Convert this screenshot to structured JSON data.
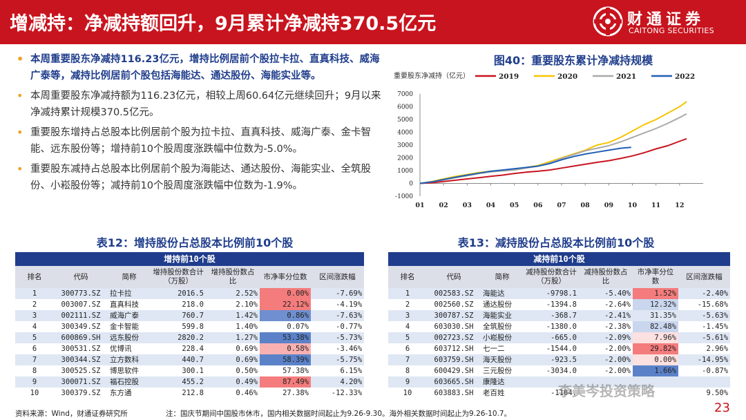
{
  "header": {
    "title": "增减持：净减持额回升，9月累计净减持370.5亿元",
    "logo_cn": "财通证券",
    "logo_en": "CAITONG SECURITIES"
  },
  "bullets": [
    "本周重要股东净减持116.23亿元，增持比例居前个股拉卡拉、直真科技、威海广泰等，减持比例居前个股包括海能达、通达股份、海能实业等。",
    "本周重要股东净减持额为116.23亿元，相较上周60.64亿元继续回升；9月以来净减持累计规模370.5亿元。",
    "重要股东增持占总股本比例居前个股为拉卡拉、直真科技、威海广泰、金卡智能、远东股份等；增持前10个股周度涨跌幅中位数为-5.0%。",
    "重要股东减持占总股本比例居前个股为海能达、通达股份、海能实业、全筑股份、小崧股份等；减持前10个股周度涨跌幅中位数为-1.9%。"
  ],
  "chart": {
    "title": "图40：重要股东累计净减持规模"
  },
  "chart_data": {
    "type": "line",
    "title": "图40：重要股东累计净减持规模",
    "ylabel": "重要股东净减持（亿元）",
    "xlabel": "",
    "x_ticks": [
      "01",
      "02",
      "03",
      "04",
      "05",
      "06",
      "07",
      "08",
      "09",
      "10",
      "11",
      "12"
    ],
    "y_ticks": [
      -1000,
      0,
      1000,
      2000,
      3000,
      4000,
      5000,
      6000,
      7000
    ],
    "ylim": [
      -1000,
      7000
    ],
    "xlim": [
      1,
      13
    ],
    "legend_position": "top",
    "series": [
      {
        "name": "2019",
        "color": "#c8141e",
        "x": [
          1,
          1.5,
          2,
          2.5,
          3,
          3.5,
          4,
          4.5,
          5,
          5.5,
          6,
          6.5,
          7,
          7.5,
          8,
          8.5,
          9,
          9.5,
          10,
          10.5,
          11,
          11.5,
          12,
          12.3
        ],
        "values": [
          0,
          50,
          150,
          250,
          350,
          450,
          550,
          650,
          780,
          880,
          950,
          1050,
          1200,
          1350,
          1500,
          1650,
          1780,
          1950,
          2150,
          2400,
          2700,
          2950,
          3300,
          3500
        ]
      },
      {
        "name": "2020",
        "color": "#f5c400",
        "x": [
          1,
          1.5,
          2,
          2.5,
          3,
          3.5,
          4,
          4.5,
          5,
          5.5,
          6,
          6.5,
          7,
          7.5,
          8,
          8.5,
          9,
          9.5,
          10,
          10.5,
          11,
          11.5,
          12,
          12.3
        ],
        "values": [
          0,
          150,
          350,
          550,
          700,
          850,
          950,
          1000,
          1100,
          1250,
          1400,
          1700,
          2000,
          2300,
          2600,
          3000,
          3200,
          3600,
          4100,
          4600,
          5000,
          5500,
          6000,
          6400
        ]
      },
      {
        "name": "2021",
        "color": "#a9a9a9",
        "x": [
          1,
          1.5,
          2,
          2.5,
          3,
          3.5,
          4,
          4.5,
          5,
          5.5,
          6,
          6.5,
          7,
          7.5,
          8,
          8.5,
          9,
          9.5,
          10,
          10.5,
          11,
          11.5,
          12,
          12.3
        ],
        "values": [
          0,
          120,
          280,
          450,
          600,
          780,
          900,
          980,
          1050,
          1200,
          1350,
          1600,
          1950,
          2250,
          2550,
          2750,
          2950,
          3250,
          3600,
          3950,
          4300,
          4700,
          5150,
          5450
        ]
      },
      {
        "name": "2022",
        "color": "#1f5fb4",
        "x": [
          1,
          1.5,
          2,
          2.5,
          3,
          3.5,
          4,
          4.5,
          5,
          5.5,
          6,
          6.5,
          7,
          7.5,
          8,
          8.5,
          9,
          9.5,
          9.95
        ],
        "values": [
          0,
          120,
          300,
          480,
          650,
          800,
          950,
          1050,
          1150,
          1250,
          1350,
          1550,
          1850,
          2100,
          2300,
          2450,
          2600,
          2750,
          2820
        ]
      }
    ]
  },
  "table_left": {
    "title": "表12：增持股份占总股本比例前10个股",
    "group_header": "增持前10个股",
    "columns": [
      "排名",
      "代码",
      "简称",
      "增持股份数合计（万股）",
      "增持股份数占比",
      "市净率分位数",
      "区间涨跌幅"
    ],
    "rows": [
      {
        "rank": "1",
        "code": "300773.SZ",
        "name": "拉卡拉",
        "shares": "2016.5",
        "ratio": "2.52%",
        "pb": "0.00%",
        "chg": "-7.69%",
        "pb_color": "#f47c7c"
      },
      {
        "rank": "2",
        "code": "003007.SZ",
        "name": "直真科技",
        "shares": "218.0",
        "ratio": "2.10%",
        "pb": "22.12%",
        "chg": "-4.19%",
        "pb_color": "#f47c7c"
      },
      {
        "rank": "3",
        "code": "002111.SZ",
        "name": "威海广泰",
        "shares": "760.7",
        "ratio": "1.42%",
        "pb": "0.86%",
        "chg": "-7.63%",
        "pb_color": "#6f8fd0"
      },
      {
        "rank": "4",
        "code": "300349.SZ",
        "name": "金卡智能",
        "shares": "599.8",
        "ratio": "1.40%",
        "pb": "0.07%",
        "chg": "-0.77%",
        "pb_color": ""
      },
      {
        "rank": "5",
        "code": "600869.SH",
        "name": "远东股份",
        "shares": "2820.2",
        "ratio": "1.27%",
        "pb": "53.38%",
        "chg": "-5.73%",
        "pb_color": "#5b82c8"
      },
      {
        "rank": "6",
        "code": "300531.SZ",
        "name": "优博讯",
        "shares": "228.4",
        "ratio": "0.69%",
        "pb": "0.58%",
        "chg": "-3.46%",
        "pb_color": "#f9b0b0"
      },
      {
        "rank": "7",
        "code": "300344.SZ",
        "name": "立方数科",
        "shares": "440.7",
        "ratio": "0.69%",
        "pb": "58.39%",
        "chg": "-5.75%",
        "pb_color": "#5b82c8"
      },
      {
        "rank": "8",
        "code": "300525.SZ",
        "name": "博思软件",
        "shares": "300.1",
        "ratio": "0.50%",
        "pb": "57.38%",
        "chg": "6.15%",
        "pb_color": ""
      },
      {
        "rank": "9",
        "code": "300071.SZ",
        "name": "福石控股",
        "shares": "455.2",
        "ratio": "0.49%",
        "pb": "87.49%",
        "chg": "4.20%",
        "pb_color": "#f47c7c"
      },
      {
        "rank": "10",
        "code": "300379.SZ",
        "name": "东方通",
        "shares": "212.8",
        "ratio": "0.46%",
        "pb": "27.38%",
        "chg": "-12.33%",
        "pb_color": ""
      }
    ]
  },
  "table_right": {
    "title": "表13：减持股份占总股本比例前10个股",
    "group_header": "减持前10个股",
    "columns": [
      "排名",
      "代码",
      "简称",
      "减持股份数合计（万股）",
      "减持股份数占比",
      "市净率分位数",
      "区间涨跌幅"
    ],
    "rows": [
      {
        "rank": "1",
        "code": "002583.SZ",
        "name": "海能达",
        "shares": "-9798.1",
        "ratio": "-5.40%",
        "pb": "1.52%",
        "chg": "-2.40%",
        "pb_color": "#f47c7c"
      },
      {
        "rank": "2",
        "code": "002560.SZ",
        "name": "通达股份",
        "shares": "-1394.8",
        "ratio": "-2.64%",
        "pb": "12.32%",
        "chg": "-15.68%",
        "pb_color": "#c9d6ee"
      },
      {
        "rank": "3",
        "code": "300787.SZ",
        "name": "海能实业",
        "shares": "-368.7",
        "ratio": "-2.41%",
        "pb": "31.35%",
        "chg": "-5.63%",
        "pb_color": ""
      },
      {
        "rank": "4",
        "code": "603030.SH",
        "name": "全筑股份",
        "shares": "-1380.0",
        "ratio": "-2.38%",
        "pb": "82.48%",
        "chg": "-1.45%",
        "pb_color": "#c9d6ee"
      },
      {
        "rank": "5",
        "code": "002723.SZ",
        "name": "小崧股份",
        "shares": "-665.0",
        "ratio": "-2.09%",
        "pb": "7.96%",
        "chg": "-5.61%",
        "pb_color": "#fde0e0"
      },
      {
        "rank": "6",
        "code": "603712.SH",
        "name": "七一二",
        "shares": "-1544.0",
        "ratio": "-2.00%",
        "pb": "29.82%",
        "chg": "2.96%",
        "pb_color": "#f47c7c"
      },
      {
        "rank": "7",
        "code": "603759.SH",
        "name": "海天股份",
        "shares": "-923.5",
        "ratio": "-2.00%",
        "pb": "0.00%",
        "chg": "-14.95%",
        "pb_color": "#fde0e0"
      },
      {
        "rank": "8",
        "code": "600429.SH",
        "name": "三元股份",
        "shares": "-3034.0",
        "ratio": "-2.00%",
        "pb": "1.66%",
        "chg": "-0.87%",
        "pb_color": "#5b82c8"
      },
      {
        "rank": "9",
        "code": "603665.SH",
        "name": "康隆达",
        "shares": "",
        "ratio": "",
        "pb": "",
        "chg": "",
        "pb_color": ""
      },
      {
        "rank": "10",
        "code": "603883.SH",
        "name": "老百姓",
        "shares": "-1164.",
        "ratio": "",
        "pb": "",
        "chg": "9.50%",
        "pb_color": ""
      }
    ]
  },
  "footer": {
    "source": "资料来源：Wind，财通证券研究所",
    "note": "注：国庆节期间中国股市休市，国内相关数据时间起止为9.26-9.30。海外相关数据时间起止为9.26-10.7。",
    "page": "23",
    "watermark": "李美岑投资策略"
  },
  "theme": {
    "brand_red": "#c8141e",
    "brand_blue": "#1f3d8c",
    "accent_orange": "#f0a020"
  }
}
